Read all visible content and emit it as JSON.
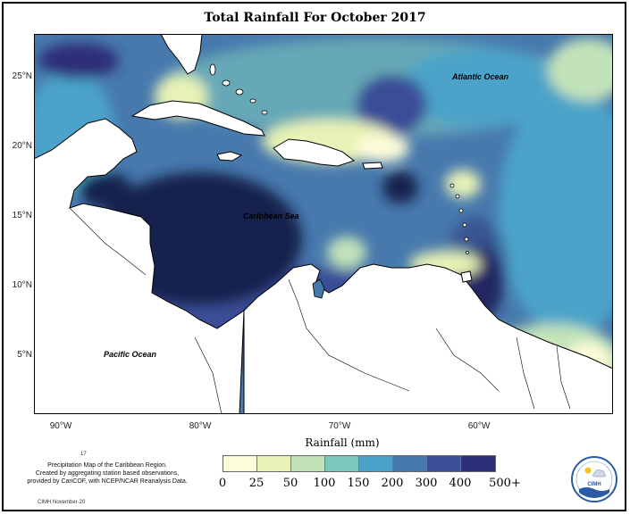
{
  "title": "Total Rainfall For October 2017",
  "axes": {
    "y_labels": [
      "25°N",
      "20°N",
      "15°N",
      "10°N",
      "5°N"
    ],
    "x_labels": [
      "90°W",
      "80°W",
      "70°W",
      "60°W"
    ]
  },
  "labels": {
    "atlantic": "Atlantic Ocean",
    "caribbean": "Caribbean Sea",
    "pacific": "Pacific Ocean"
  },
  "legend": {
    "title": "Rainfall (mm)",
    "breaks": [
      "0",
      "25",
      "50",
      "100",
      "150",
      "200",
      "300",
      "400",
      "500+"
    ],
    "colors": [
      "#fcfdd8",
      "#e8f2b6",
      "#c2e3b9",
      "#7cc8bd",
      "#4ba3c9",
      "#4779ad",
      "#3a4e97",
      "#2d2f78",
      "#15214d"
    ]
  },
  "caption": {
    "number": "17",
    "line1": "Precipitation Map of the Caribbean Region.",
    "line2": "Created by aggregating station based observations,",
    "line3": "provided by CariCOF, with NCEP/NCAR Reanalysis Data."
  },
  "footer": "CIMH November-20",
  "logo": {
    "text": "CIMH"
  }
}
